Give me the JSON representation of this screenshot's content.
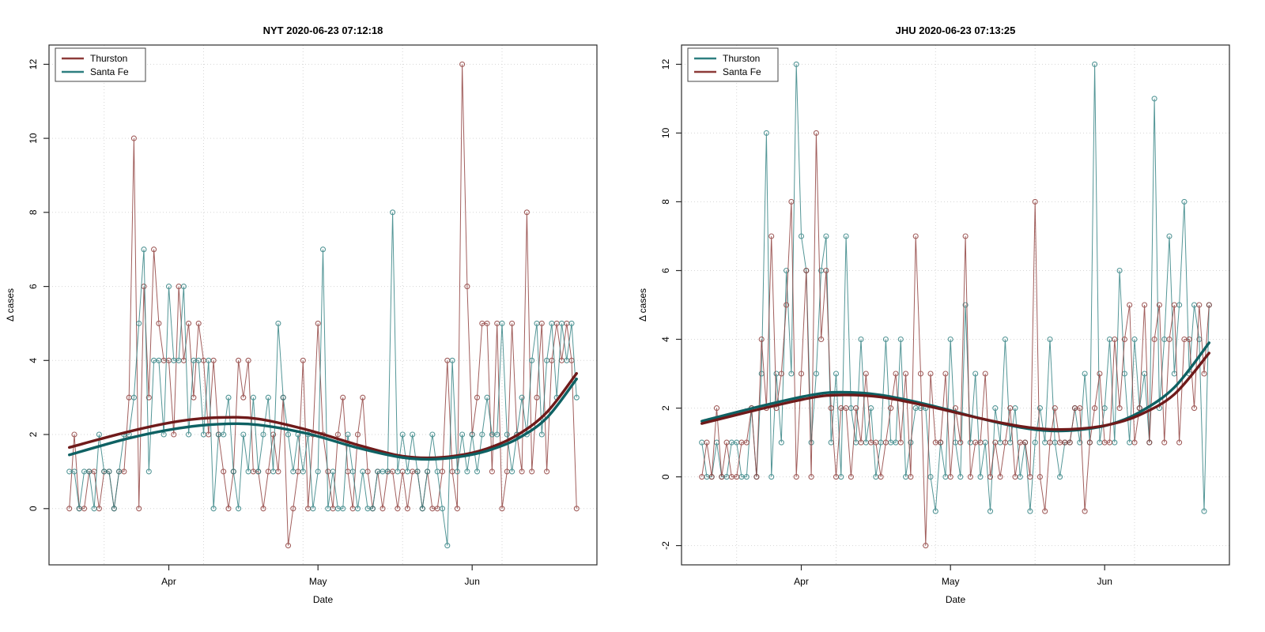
{
  "style": {
    "background": "#ffffff",
    "grid_color": "#d6d6d6",
    "axis_color": "#2b2b2b",
    "thurston_red": "#8d3b39",
    "thurston_red_trend": "#6f1a1a",
    "santafe_teal": "#2e7f80",
    "santafe_teal_trend": "#0e6163"
  },
  "chart_data": [
    {
      "type": "line",
      "title": "NYT 2020-06-23 07:12:18",
      "xlabel": "Date",
      "ylabel": "Δ cases",
      "x_start_date": "2020-03-12",
      "x_end_date": "2020-06-22",
      "x_unit": "day",
      "n_points": 103,
      "xticks": [
        {
          "label": "Apr",
          "day": 20
        },
        {
          "label": "May",
          "day": 50
        },
        {
          "label": "Jun",
          "day": 81
        }
      ],
      "grid_x_days": [
        7,
        27,
        47,
        67,
        87
      ],
      "yticks": [
        0,
        2,
        4,
        6,
        8,
        10,
        12
      ],
      "ylim": [
        -1,
        12
      ],
      "grid": true,
      "legend_position": "top-left",
      "point_style": "open-circle",
      "series": [
        {
          "name": "Thurston",
          "color": "#8d3b39",
          "trend_color": "#6f1a1a",
          "values": [
            0,
            2,
            0,
            0,
            1,
            1,
            0,
            1,
            1,
            0,
            1,
            1,
            3,
            10,
            0,
            6,
            3,
            7,
            5,
            4,
            4,
            2,
            6,
            4,
            5,
            3,
            5,
            4,
            2,
            4,
            2,
            1,
            0,
            1,
            4,
            3,
            4,
            1,
            1,
            0,
            1,
            2,
            1,
            3,
            -1,
            0,
            1,
            4,
            0,
            2,
            5,
            2,
            1,
            0,
            2,
            3,
            1,
            0,
            2,
            3,
            1,
            0,
            1,
            0,
            1,
            1,
            0,
            1,
            0,
            1,
            1,
            0,
            1,
            0,
            0,
            1,
            4,
            1,
            0,
            12,
            6,
            2,
            3,
            5,
            5,
            1,
            5,
            0,
            1,
            5,
            2,
            1,
            8,
            1,
            3,
            5,
            1,
            4,
            5,
            4,
            5,
            4,
            0
          ],
          "trend": [
            [
              0,
              1.65
            ],
            [
              12,
              2.08
            ],
            [
              22,
              2.36
            ],
            [
              30,
              2.46
            ],
            [
              38,
              2.42
            ],
            [
              48,
              2.12
            ],
            [
              58,
              1.72
            ],
            [
              66,
              1.44
            ],
            [
              72,
              1.37
            ],
            [
              78,
              1.43
            ],
            [
              84,
              1.62
            ],
            [
              90,
              1.98
            ],
            [
              96,
              2.6
            ],
            [
              102,
              3.65
            ]
          ]
        },
        {
          "name": "Santa Fe",
          "color": "#2e7f80",
          "trend_color": "#0e6163",
          "values": [
            1,
            1,
            0,
            1,
            1,
            0,
            2,
            1,
            1,
            0,
            1,
            2,
            2,
            3,
            5,
            7,
            1,
            4,
            4,
            2,
            6,
            4,
            4,
            6,
            2,
            4,
            4,
            2,
            4,
            0,
            2,
            2,
            3,
            1,
            0,
            2,
            1,
            3,
            1,
            2,
            3,
            1,
            5,
            3,
            2,
            1,
            2,
            1,
            2,
            0,
            1,
            7,
            0,
            1,
            0,
            0,
            2,
            1,
            0,
            1,
            0,
            0,
            1,
            1,
            1,
            8,
            1,
            2,
            1,
            2,
            1,
            0,
            1,
            2,
            1,
            0,
            -1,
            4,
            1,
            2,
            1,
            2,
            1,
            2,
            3,
            2,
            2,
            5,
            2,
            1,
            2,
            3,
            2,
            4,
            5,
            2,
            4,
            5,
            3,
            5,
            4,
            5,
            3
          ],
          "trend": [
            [
              0,
              1.45
            ],
            [
              12,
              1.9
            ],
            [
              22,
              2.17
            ],
            [
              30,
              2.28
            ],
            [
              38,
              2.26
            ],
            [
              48,
              2.02
            ],
            [
              58,
              1.64
            ],
            [
              66,
              1.4
            ],
            [
              72,
              1.33
            ],
            [
              78,
              1.39
            ],
            [
              84,
              1.56
            ],
            [
              90,
              1.88
            ],
            [
              96,
              2.45
            ],
            [
              102,
              3.5
            ]
          ]
        }
      ]
    },
    {
      "type": "line",
      "title": "JHU 2020-06-23 07:13:25",
      "xlabel": "Date",
      "ylabel": "Δ cases",
      "x_start_date": "2020-03-12",
      "x_end_date": "2020-06-22",
      "x_unit": "day",
      "n_points": 103,
      "xticks": [
        {
          "label": "Apr",
          "day": 20
        },
        {
          "label": "May",
          "day": 50
        },
        {
          "label": "Jun",
          "day": 81
        }
      ],
      "grid_x_days": [
        7,
        27,
        47,
        67,
        87
      ],
      "yticks": [
        -2,
        0,
        2,
        4,
        6,
        8,
        10,
        12
      ],
      "ylim": [
        -2,
        12
      ],
      "grid": true,
      "legend_position": "top-left",
      "point_style": "open-circle",
      "series": [
        {
          "name": "Thurston",
          "color": "#2e7f80",
          "trend_color": "#0e6163",
          "values": [
            1,
            0,
            0,
            1,
            0,
            0,
            1,
            1,
            0,
            0,
            2,
            0,
            3,
            10,
            0,
            3,
            1,
            6,
            3,
            12,
            7,
            6,
            1,
            3,
            6,
            7,
            1,
            3,
            0,
            7,
            2,
            1,
            4,
            1,
            2,
            0,
            1,
            4,
            1,
            1,
            4,
            0,
            1,
            2,
            2,
            2,
            0,
            -1,
            1,
            0,
            4,
            1,
            0,
            5,
            1,
            3,
            0,
            1,
            -1,
            2,
            1,
            4,
            1,
            2,
            0,
            1,
            -1,
            1,
            2,
            1,
            4,
            1,
            0,
            1,
            1,
            2,
            1,
            3,
            1,
            12,
            1,
            2,
            4,
            1,
            6,
            3,
            1,
            4,
            2,
            3,
            1,
            11,
            2,
            4,
            7,
            3,
            5,
            8,
            3,
            5,
            4,
            -1,
            5
          ],
          "trend": [
            [
              0,
              1.62
            ],
            [
              12,
              2.06
            ],
            [
              22,
              2.38
            ],
            [
              28,
              2.46
            ],
            [
              36,
              2.38
            ],
            [
              46,
              2.08
            ],
            [
              56,
              1.7
            ],
            [
              64,
              1.44
            ],
            [
              70,
              1.34
            ],
            [
              76,
              1.37
            ],
            [
              82,
              1.52
            ],
            [
              88,
              1.88
            ],
            [
              95,
              2.6
            ],
            [
              102,
              3.9
            ]
          ]
        },
        {
          "name": "Santa Fe",
          "color": "#8d3b39",
          "trend_color": "#6f1a1a",
          "values": [
            0,
            1,
            0,
            2,
            0,
            1,
            0,
            0,
            1,
            1,
            2,
            0,
            4,
            2,
            7,
            2,
            3,
            5,
            8,
            0,
            3,
            6,
            0,
            10,
            4,
            6,
            2,
            0,
            2,
            2,
            0,
            2,
            1,
            3,
            1,
            1,
            0,
            1,
            2,
            3,
            1,
            3,
            0,
            7,
            3,
            -2,
            3,
            1,
            1,
            3,
            0,
            2,
            1,
            7,
            0,
            1,
            1,
            3,
            0,
            1,
            0,
            1,
            2,
            0,
            1,
            1,
            0,
            8,
            0,
            -1,
            1,
            2,
            1,
            1,
            1,
            2,
            2,
            -1,
            1,
            2,
            3,
            1,
            1,
            4,
            2,
            4,
            5,
            1,
            2,
            5,
            1,
            4,
            5,
            1,
            4,
            5,
            1,
            4,
            4,
            2,
            5,
            3,
            5
          ],
          "trend": [
            [
              0,
              1.55
            ],
            [
              12,
              1.98
            ],
            [
              22,
              2.3
            ],
            [
              28,
              2.38
            ],
            [
              36,
              2.32
            ],
            [
              46,
              2.04
            ],
            [
              56,
              1.7
            ],
            [
              64,
              1.47
            ],
            [
              70,
              1.38
            ],
            [
              76,
              1.4
            ],
            [
              82,
              1.52
            ],
            [
              88,
              1.8
            ],
            [
              95,
              2.4
            ],
            [
              102,
              3.6
            ]
          ]
        }
      ]
    }
  ]
}
